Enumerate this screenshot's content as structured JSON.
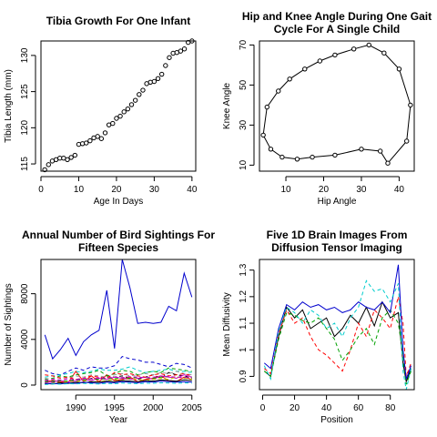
{
  "chart_data": [
    {
      "id": "tibia",
      "type": "scatter",
      "title": [
        "Tibia Growth For One Infant"
      ],
      "xlabel": "Age In Days",
      "ylabel": "Tibia Length (mm)",
      "xlim": [
        0,
        41
      ],
      "ylim": [
        114,
        132
      ],
      "xticks": [
        0,
        10,
        20,
        30,
        40
      ],
      "yticks": [
        115,
        120,
        125,
        130
      ],
      "x": [
        1,
        2,
        3,
        4,
        5,
        6,
        7,
        8,
        9,
        10,
        11,
        12,
        13,
        14,
        15,
        16,
        17,
        18,
        19,
        20,
        21,
        22,
        23,
        24,
        25,
        26,
        27,
        28,
        29,
        30,
        31,
        32,
        33,
        34,
        35,
        36,
        37,
        38,
        39,
        40
      ],
      "y": [
        114.2,
        114.9,
        115.4,
        115.6,
        115.8,
        115.8,
        115.6,
        115.9,
        116.2,
        117.7,
        117.8,
        117.9,
        118.2,
        118.6,
        118.8,
        118.5,
        119.3,
        120.4,
        120.6,
        121.3,
        121.6,
        122.2,
        122.6,
        123.2,
        123.8,
        124.6,
        125.2,
        126.1,
        126.3,
        126.4,
        126.8,
        127.4,
        128.6,
        129.7,
        130.3,
        130.4,
        130.6,
        130.9,
        131.8,
        132.0
      ],
      "series_style": {
        "marker": "open-circle",
        "line": false,
        "color": "#000000"
      }
    },
    {
      "id": "gait",
      "type": "line",
      "title": [
        "Hip and Knee Angle During One Gait",
        "Cycle For A Single Child"
      ],
      "xlabel": "Hip Angle",
      "ylabel": "Knee Angle",
      "xlim": [
        3,
        44
      ],
      "ylim": [
        7,
        72
      ],
      "xticks": [
        10,
        20,
        30,
        40
      ],
      "yticks": [
        10,
        30,
        50,
        70
      ],
      "x": [
        37,
        35,
        30,
        23,
        17,
        13,
        9,
        6,
        4,
        5,
        8,
        11,
        15,
        19,
        23,
        28,
        32,
        36,
        40,
        43,
        42
      ],
      "y": [
        11,
        17,
        18,
        15,
        14,
        13,
        14,
        18,
        25,
        39,
        47,
        53,
        58,
        62,
        65,
        68,
        70,
        66,
        58,
        40,
        22
      ],
      "series_style": {
        "marker": "open-circle",
        "line": true,
        "color": "#000000",
        "closed": true
      }
    },
    {
      "id": "birds",
      "type": "line",
      "title": [
        "Annual Number of Bird Sightings For",
        "Fifteen Species"
      ],
      "xlabel": "Year",
      "ylabel": "Number of Sightings",
      "xlim": [
        1985.5,
        2005.5
      ],
      "ylim": [
        -400,
        11000
      ],
      "xticks": [
        1990,
        1995,
        2000,
        2005
      ],
      "yticks": [
        0,
        4000,
        8000
      ],
      "x": [
        1986,
        1987,
        1988,
        1989,
        1990,
        1991,
        1992,
        1993,
        1994,
        1995,
        1996,
        1997,
        1998,
        1999,
        2000,
        2001,
        2002,
        2003,
        2004,
        2005
      ],
      "series": [
        {
          "color": "#0000cd",
          "values": [
            4400,
            2300,
            3100,
            4100,
            2600,
            3800,
            4400,
            4800,
            8300,
            3200,
            11000,
            8500,
            5400,
            5500,
            5400,
            5500,
            6900,
            6500,
            9800,
            7700
          ]
        },
        {
          "color": "#0000cd",
          "values": [
            1300,
            1000,
            900,
            1200,
            1500,
            1300,
            1600,
            1500,
            1500,
            1700,
            2500,
            2300,
            2200,
            2000,
            2000,
            1800,
            1600,
            1900,
            1800,
            1500
          ]
        },
        {
          "color": "#000000",
          "values": [
            400,
            300,
            200,
            300,
            500,
            400,
            600,
            500,
            800,
            700,
            800,
            600,
            500,
            700,
            900,
            600,
            1100,
            900,
            800,
            600
          ]
        },
        {
          "color": "#ff0000",
          "values": [
            300,
            400,
            300,
            200,
            1200,
            300,
            800,
            300,
            900,
            400,
            500,
            700,
            300,
            500,
            600,
            800,
            400,
            300,
            700,
            500
          ]
        },
        {
          "color": "#00a000",
          "values": [
            500,
            600,
            800,
            700,
            900,
            1000,
            1100,
            1300,
            800,
            1000,
            1300,
            1200,
            900,
            1100,
            1200,
            1100,
            1500,
            1400,
            1300,
            1200
          ]
        },
        {
          "color": "#00cccc",
          "values": [
            700,
            800,
            900,
            1000,
            1200,
            1100,
            1200,
            1400,
            1300,
            1300,
            1400,
            1600,
            1300,
            1100,
            1200,
            1300,
            1400,
            1200,
            1200,
            1100
          ]
        },
        {
          "color": "#cc00cc",
          "values": [
            200,
            300,
            400,
            300,
            400,
            500,
            400,
            600,
            500,
            700,
            600,
            500,
            600,
            700,
            500,
            800,
            700,
            600,
            900,
            700
          ]
        },
        {
          "color": "#cccc00",
          "values": [
            100,
            200,
            200,
            300,
            300,
            400,
            300,
            300,
            400,
            500,
            400,
            600,
            500,
            400,
            500,
            600,
            500,
            700,
            600,
            500
          ]
        },
        {
          "color": "#999999",
          "values": [
            600,
            500,
            700,
            600,
            800,
            700,
            900,
            800,
            700,
            900,
            1000,
            800,
            900,
            1000,
            900,
            1100,
            1000,
            1200,
            1000,
            900
          ]
        },
        {
          "color": "#000000",
          "values": [
            150,
            100,
            200,
            150,
            250,
            200,
            300,
            250,
            350,
            300,
            400,
            350,
            300,
            400,
            350,
            450,
            400,
            350,
            450,
            400
          ]
        },
        {
          "color": "#ff0000",
          "values": [
            900,
            800,
            600,
            700,
            500,
            600,
            800,
            700,
            600,
            1100,
            900,
            1000,
            800,
            700,
            900,
            1000,
            800,
            900,
            1000,
            800
          ]
        },
        {
          "color": "#00a000",
          "values": [
            300,
            350,
            400,
            350,
            500,
            450,
            550,
            500,
            600,
            550,
            650,
            600,
            700,
            650,
            600,
            700,
            750,
            700,
            650,
            700
          ]
        },
        {
          "color": "#0000cd",
          "values": [
            100,
            150,
            100,
            200,
            150,
            250,
            200,
            150,
            250,
            200,
            300,
            250,
            200,
            300,
            250,
            350,
            300,
            250,
            300,
            250
          ]
        },
        {
          "color": "#00cccc",
          "values": [
            50,
            100,
            80,
            120,
            100,
            150,
            130,
            100,
            150,
            120,
            180,
            150,
            130,
            170,
            160,
            200,
            180,
            160,
            190,
            170
          ]
        },
        {
          "color": "#cc00cc",
          "values": [
            400,
            500,
            450,
            550,
            500,
            600,
            550,
            650,
            600,
            700,
            650,
            750,
            700,
            650,
            700,
            800,
            750,
            700,
            650,
            700
          ]
        }
      ]
    },
    {
      "id": "brain",
      "type": "line",
      "title": [
        "Five 1D Brain Images From",
        "Diffusion Tensor Imaging"
      ],
      "xlabel": "Position",
      "ylabel": "Mean Diffusivity",
      "xlim": [
        -2,
        95
      ],
      "ylim": [
        0.85,
        1.34
      ],
      "xticks": [
        0,
        20,
        40,
        60,
        80
      ],
      "yticks": [
        0.9,
        1.0,
        1.1,
        1.2,
        1.3
      ],
      "x": [
        1,
        5,
        10,
        15,
        20,
        25,
        30,
        35,
        40,
        45,
        50,
        55,
        60,
        65,
        70,
        75,
        80,
        85,
        88,
        90,
        93
      ],
      "series": [
        {
          "color": "#000000",
          "values": [
            0.92,
            0.9,
            1.05,
            1.16,
            1.12,
            1.15,
            1.08,
            1.1,
            1.12,
            1.05,
            1.08,
            1.13,
            1.1,
            1.16,
            1.09,
            1.18,
            1.12,
            1.14,
            0.95,
            0.88,
            0.93
          ]
        },
        {
          "color": "#ff0000",
          "values": [
            0.93,
            0.91,
            1.06,
            1.15,
            1.1,
            1.12,
            1.05,
            1.0,
            0.98,
            0.95,
            0.92,
            1.0,
            1.1,
            1.05,
            1.15,
            1.12,
            1.08,
            1.2,
            1.1,
            0.9,
            0.95
          ]
        },
        {
          "color": "#00a000",
          "values": [
            0.92,
            0.9,
            1.04,
            1.14,
            1.13,
            1.11,
            1.1,
            1.12,
            1.08,
            1.04,
            0.96,
            1.0,
            1.05,
            1.08,
            1.02,
            1.12,
            1.15,
            1.1,
            0.98,
            0.87,
            0.92
          ]
        },
        {
          "color": "#0000cd",
          "values": [
            0.95,
            0.93,
            1.08,
            1.17,
            1.15,
            1.18,
            1.16,
            1.17,
            1.15,
            1.16,
            1.14,
            1.15,
            1.18,
            1.16,
            1.15,
            1.18,
            1.14,
            1.32,
            1.0,
            0.89,
            0.94
          ]
        },
        {
          "color": "#00cccc",
          "values": [
            0.94,
            0.89,
            1.07,
            1.16,
            1.14,
            1.1,
            1.15,
            1.13,
            1.08,
            1.1,
            1.05,
            1.12,
            1.16,
            1.26,
            1.22,
            1.23,
            1.18,
            1.25,
            0.92,
            0.85,
            0.93
          ]
        }
      ]
    }
  ]
}
